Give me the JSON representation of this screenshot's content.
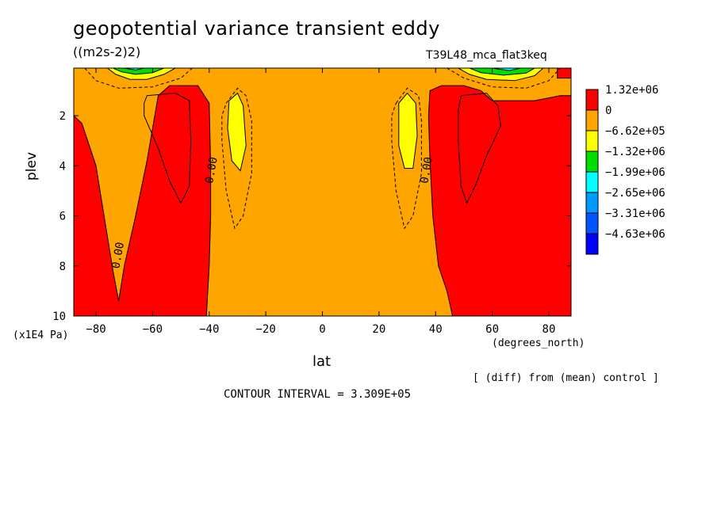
{
  "title": "geopotential variance transient eddy",
  "units": "((m2s-2)2)",
  "experiment": "T39L48_mca_flat3keq",
  "diff_note": "[ (diff) from (mean) control ]",
  "contour_interval_text": "CONTOUR INTERVAL = 3.309E+05",
  "chart_data": {
    "type": "contour",
    "xlabel": "lat",
    "xunit": "(degrees_north)",
    "ylabel": "plev",
    "yunit": "(x1E4 Pa)",
    "xlim": [
      -87.86,
      87.86
    ],
    "ylim": [
      0.1,
      10
    ],
    "y_inverted": true,
    "xticks": [
      -80,
      -60,
      -40,
      -20,
      0,
      20,
      40,
      60,
      80
    ],
    "yticks": [
      2,
      4,
      6,
      8,
      10
    ],
    "contour_interval": 330900,
    "contour_labels": [
      {
        "text": "0.00",
        "lat": -71,
        "plev": 7.6
      },
      {
        "text": "0.00",
        "lat": -38,
        "plev": 4.2
      },
      {
        "text": "0.00",
        "lat": 38,
        "plev": 4.2
      }
    ],
    "legend": [
      {
        "label": "1.32e+06",
        "color": "#ff0000"
      },
      {
        "label": "0",
        "color": "#ffa500"
      },
      {
        "label": "-6.62e+05",
        "color": "#ffff00"
      },
      {
        "label": "-1.32e+06",
        "color": "#00dd00"
      },
      {
        "label": "-1.99e+06",
        "color": "#00ffff"
      },
      {
        "label": "-2.65e+06",
        "color": "#0099ff"
      },
      {
        "label": "-3.31e+06",
        "color": "#0055ff"
      },
      {
        "label": "-4.63e+06",
        "color": "#0000ff"
      }
    ],
    "regions": [
      {
        "name": "background",
        "fill_class": "0 to 1.32e+06",
        "color": "#ffa500",
        "points": [
          [
            -87.86,
            0.1
          ],
          [
            87.86,
            0.1
          ],
          [
            87.86,
            10
          ],
          [
            -87.86,
            10
          ]
        ]
      },
      {
        "name": "sh-high-positive",
        "fill_class": "1.32e+06",
        "color": "#ff0000",
        "points": [
          [
            -87.86,
            2
          ],
          [
            -85,
            2.3
          ],
          [
            -80,
            4
          ],
          [
            -76,
            6.8
          ],
          [
            -74,
            8.2
          ],
          [
            -72,
            9.4
          ],
          [
            -70,
            8
          ],
          [
            -66,
            6
          ],
          [
            -62,
            3.8
          ],
          [
            -58,
            1.2
          ],
          [
            -54,
            0.8
          ],
          [
            -44,
            0.8
          ],
          [
            -40,
            1.5
          ],
          [
            -39.5,
            4
          ],
          [
            -39.5,
            6
          ],
          [
            -40,
            8
          ],
          [
            -41,
            10
          ],
          [
            -87.86,
            10
          ]
        ]
      },
      {
        "name": "nh-high-positive",
        "fill_class": "1.32e+06",
        "color": "#ff0000",
        "points": [
          [
            38,
            1
          ],
          [
            42,
            0.8
          ],
          [
            50,
            0.8
          ],
          [
            56,
            1
          ],
          [
            60,
            1.4
          ],
          [
            66,
            1.4
          ],
          [
            75,
            1.4
          ],
          [
            84,
            1.2
          ],
          [
            87.86,
            1.2
          ],
          [
            87.86,
            10
          ],
          [
            46,
            10
          ],
          [
            44,
            9
          ],
          [
            41,
            8
          ],
          [
            39,
            6
          ],
          [
            38,
            3.8
          ],
          [
            37.5,
            2
          ]
        ]
      },
      {
        "name": "nh-top-positive",
        "fill_class": "1.32e+06",
        "color": "#ff0000",
        "points": [
          [
            83,
            0.1
          ],
          [
            87.86,
            0.1
          ],
          [
            87.86,
            0.5
          ],
          [
            83,
            0.5
          ]
        ]
      },
      {
        "name": "sh-midlat-negative",
        "fill_class": "-6.62e+05",
        "color": "#ffff00",
        "points": [
          [
            -33,
            1.4
          ],
          [
            -30,
            1.1
          ],
          [
            -28,
            1.6
          ],
          [
            -27,
            3.2
          ],
          [
            -29,
            4.2
          ],
          [
            -32,
            3.8
          ],
          [
            -33.5,
            2.5
          ]
        ]
      },
      {
        "name": "nh-midlat-negative",
        "fill_class": "-6.62e+05",
        "color": "#ffff00",
        "points": [
          [
            27,
            1.5
          ],
          [
            30,
            1.1
          ],
          [
            33,
            1.5
          ],
          [
            33.5,
            2.8
          ],
          [
            32,
            4.1
          ],
          [
            29,
            4.1
          ],
          [
            27,
            3.2
          ]
        ]
      },
      {
        "name": "sh-top-negative-1",
        "fill_class": "-6.62e+05",
        "color": "#ffff00",
        "points": [
          [
            -76,
            0.1
          ],
          [
            -52,
            0.1
          ],
          [
            -56,
            0.35
          ],
          [
            -62,
            0.55
          ],
          [
            -68,
            0.55
          ],
          [
            -73,
            0.35
          ]
        ]
      },
      {
        "name": "sh-top-negative-2",
        "fill_class": "-1.32e+06",
        "color": "#00dd00",
        "points": [
          [
            -74,
            0.1
          ],
          [
            -56,
            0.1
          ],
          [
            -60,
            0.28
          ],
          [
            -66,
            0.35
          ],
          [
            -71,
            0.25
          ]
        ]
      },
      {
        "name": "sh-top-negative-3",
        "fill_class": "-1.99e+06",
        "color": "#00ffff",
        "points": [
          [
            -70,
            0.1
          ],
          [
            -63,
            0.1
          ],
          [
            -66,
            0.18
          ]
        ]
      },
      {
        "name": "nh-top-negative-1",
        "fill_class": "-6.62e+05",
        "color": "#ffff00",
        "points": [
          [
            48,
            0.1
          ],
          [
            78,
            0.1
          ],
          [
            75,
            0.4
          ],
          [
            68,
            0.6
          ],
          [
            58,
            0.55
          ],
          [
            52,
            0.35
          ]
        ]
      },
      {
        "name": "nh-top-negative-2",
        "fill_class": "-1.32e+06",
        "color": "#00dd00",
        "points": [
          [
            52,
            0.1
          ],
          [
            75,
            0.1
          ],
          [
            72,
            0.3
          ],
          [
            64,
            0.38
          ],
          [
            56,
            0.28
          ]
        ]
      },
      {
        "name": "nh-top-negative-3",
        "fill_class": "-1.99e+06",
        "color": "#00ffff",
        "points": [
          [
            60,
            0.1
          ],
          [
            70,
            0.1
          ],
          [
            66,
            0.2
          ]
        ]
      }
    ],
    "solid_contours": [
      {
        "name": "sh-inner-positive",
        "points": [
          [
            -62,
            1.2
          ],
          [
            -52,
            1.1
          ],
          [
            -47,
            1.4
          ],
          [
            -46.5,
            3
          ],
          [
            -47,
            4.8
          ],
          [
            -50,
            5.5
          ],
          [
            -54,
            4.6
          ],
          [
            -58,
            3.3
          ],
          [
            -63,
            2
          ],
          [
            -63,
            1.5
          ]
        ]
      },
      {
        "name": "nh-inner-positive",
        "points": [
          [
            49,
            1.2
          ],
          [
            58,
            1.1
          ],
          [
            62,
            1.6
          ],
          [
            63,
            2.4
          ],
          [
            58,
            3.6
          ],
          [
            54,
            4.8
          ],
          [
            51,
            5.5
          ],
          [
            49,
            4.8
          ],
          [
            48,
            3
          ],
          [
            48,
            1.8
          ]
        ]
      }
    ],
    "dashed_contours": [
      {
        "name": "sh-dashed-inner",
        "points": [
          [
            -34,
            1.5
          ],
          [
            -30,
            0.9
          ],
          [
            -27,
            1.2
          ],
          [
            -25,
            2.2
          ],
          [
            -25,
            4.3
          ],
          [
            -28,
            6
          ],
          [
            -31,
            6.5
          ],
          [
            -34,
            5
          ],
          [
            -35.5,
            3
          ],
          [
            -35.5,
            2
          ]
        ]
      },
      {
        "name": "sh-dashed-top",
        "points": [
          [
            -84,
            0.1
          ],
          [
            -80,
            0.6
          ],
          [
            -72,
            0.9
          ],
          [
            -60,
            0.85
          ],
          [
            -50,
            0.5
          ],
          [
            -46,
            0.1
          ]
        ]
      },
      {
        "name": "nh-dashed-inner",
        "points": [
          [
            26,
            1.5
          ],
          [
            30,
            0.9
          ],
          [
            34,
            1.2
          ],
          [
            35,
            2.2
          ],
          [
            35,
            4.3
          ],
          [
            32,
            6
          ],
          [
            29,
            6.5
          ],
          [
            26,
            5
          ],
          [
            24.5,
            3
          ],
          [
            24.5,
            2
          ]
        ]
      },
      {
        "name": "nh-dashed-top",
        "points": [
          [
            44,
            0.1
          ],
          [
            50,
            0.5
          ],
          [
            60,
            0.85
          ],
          [
            72,
            0.9
          ],
          [
            80,
            0.6
          ],
          [
            84,
            0.1
          ]
        ]
      }
    ]
  }
}
